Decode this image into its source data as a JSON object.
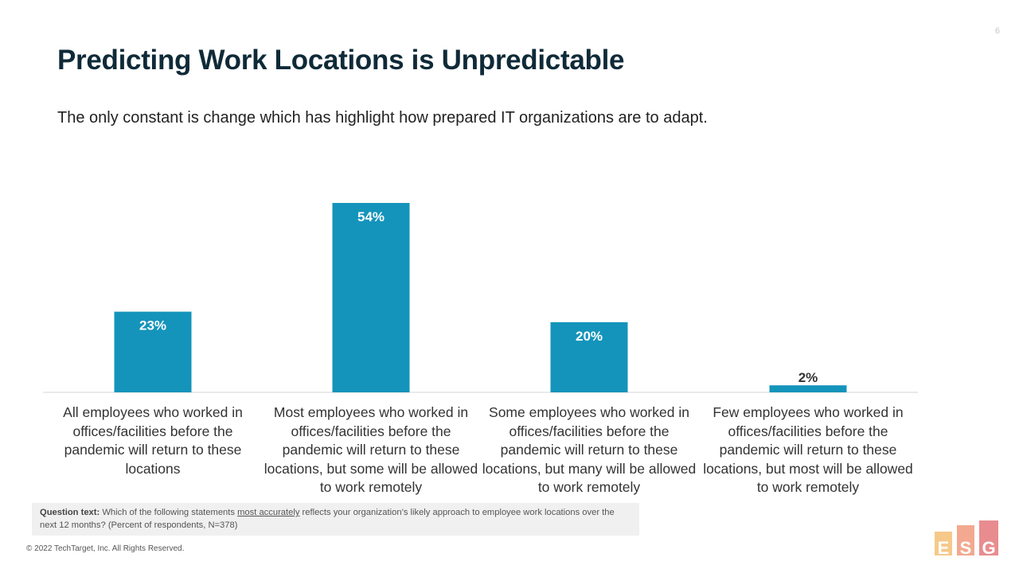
{
  "page_number": "6",
  "title": "Predicting Work Locations is Unpredictable",
  "subtitle": "The only constant is change  which has highlight how prepared IT organizations are to adapt.",
  "colors": {
    "bar": "#1494bb",
    "label_inside": "#ffffff",
    "label_outside": "#333333",
    "title": "#0f2a38"
  },
  "chart_data": {
    "type": "bar",
    "categories": [
      "All employees who worked in offices/facilities before the pandemic will return to these locations",
      "Most employees who worked in offices/facilities before the pandemic will return to these locations, but some will be allowed to work remotely",
      "Some employees who worked in offices/facilities before the pandemic will return to these locations, but many will be allowed to work remotely",
      "Few employees who worked in offices/facilities before the pandemic will return to these locations, but most will be allowed to work remotely"
    ],
    "values": [
      23,
      54,
      20,
      2
    ],
    "value_labels": [
      "23%",
      "54%",
      "20%",
      "2%"
    ],
    "ylim": [
      0,
      55
    ],
    "grid": false,
    "legend": "none",
    "xlabel": "",
    "ylabel": ""
  },
  "question": {
    "lead": "Question text:",
    "pre": "Which of the following statements ",
    "emph": "most accurately",
    "post": " reflects your organization’s likely approach to employee work locations over the next 12 months? (Percent of respondents, N=378)"
  },
  "copyright": "© 2022 TechTarget, Inc. All Rights Reserved.",
  "logo": {
    "letters": [
      "E",
      "S",
      "G"
    ],
    "colors": [
      "#f6c98a",
      "#f2a98f",
      "#e88c8f"
    ]
  }
}
